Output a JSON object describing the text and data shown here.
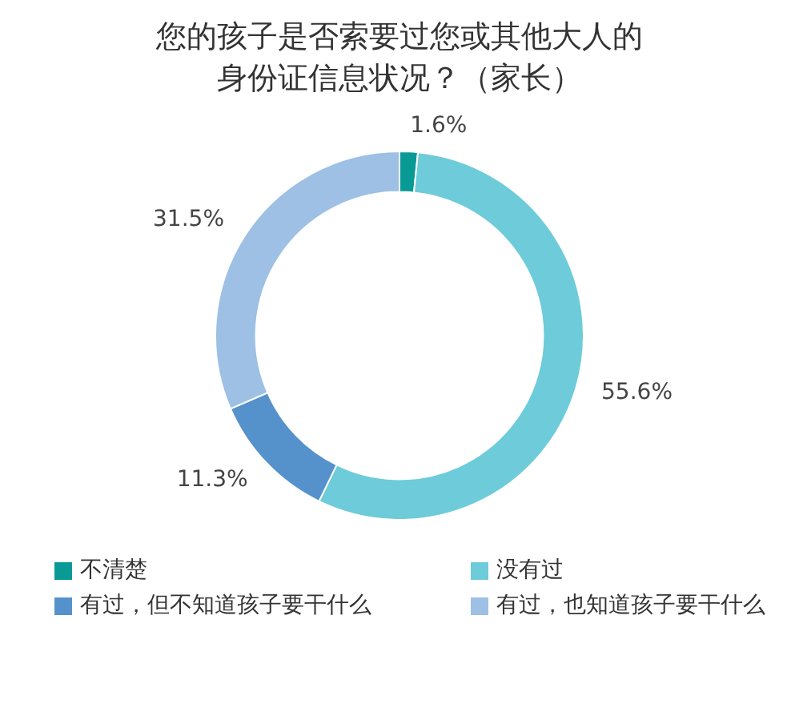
{
  "chart_data": {
    "type": "donut",
    "title": "您的孩子是否索要过您或其他大人的身份证信息状况？（家长）",
    "categories": [
      "不清楚",
      "没有过",
      "有过，但不知道孩子要干什么",
      "有过，也知道孩子要干什么"
    ],
    "values": [
      1.6,
      55.6,
      11.3,
      31.5
    ],
    "colors": [
      "#0a9a96",
      "#6ecbda",
      "#5592cc",
      "#9dc0e4"
    ],
    "value_labels": [
      "1.6%",
      "55.6%",
      "11.3%",
      "31.5%"
    ],
    "legend": "bottom"
  }
}
